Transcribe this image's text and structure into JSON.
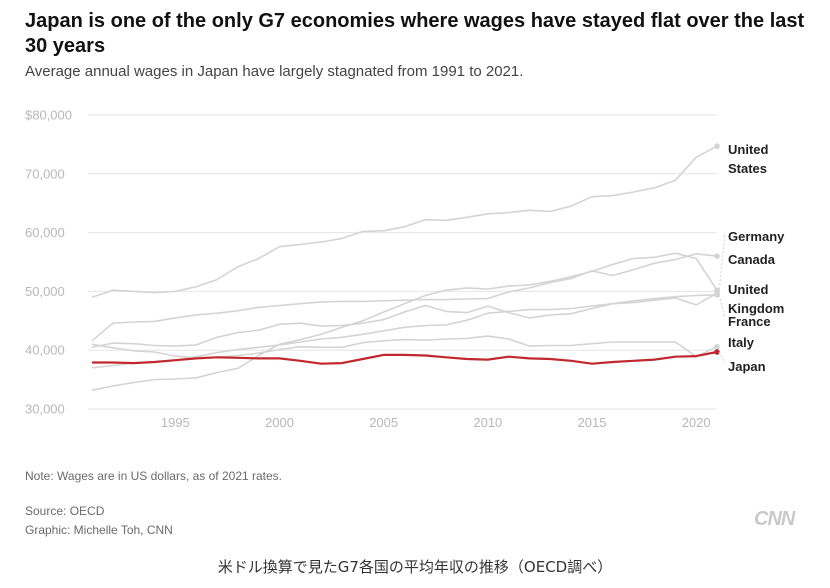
{
  "header": {
    "title": "Japan is one of the only G7 economies where wages have stayed flat over the last 30 years",
    "subtitle": "Average annual wages in Japan have largely stagnated from 1991 to 2021."
  },
  "footer": {
    "note": "Note: Wages are in US dollars, as of 2021 rates.",
    "source": "Source: OECD",
    "credit": "Graphic: Michelle Toh, CNN",
    "logo": "CNN",
    "caption": "米ドル換算で見たG7各国の平均年収の推移（OECD調べ）"
  },
  "colors": {
    "highlight": "#c0282d",
    "other": "#d4d4d4",
    "grid": "#e6e6e6"
  },
  "chart_data": {
    "type": "line",
    "title": "Japan is one of the only G7 economies where wages have stayed flat over the last 30 years",
    "subtitle": "Average annual wages in Japan have largely stagnated from 1991 to 2021.",
    "xlabel": "",
    "ylabel": "",
    "xlim": [
      1991,
      2021
    ],
    "ylim": [
      30000,
      80000
    ],
    "x_ticks": [
      1995,
      2000,
      2005,
      2010,
      2015,
      2020
    ],
    "y_ticks": [
      {
        "value": 30000,
        "label": "30,000"
      },
      {
        "value": 40000,
        "label": "40,000"
      },
      {
        "value": 50000,
        "label": "50,000"
      },
      {
        "value": 60000,
        "label": "60,000"
      },
      {
        "value": 70000,
        "label": "70,000"
      },
      {
        "value": 80000,
        "label": "$80,000"
      }
    ],
    "grid": true,
    "legend": "direct labels at right end of lines",
    "x": [
      1991,
      1992,
      1993,
      1994,
      1995,
      1996,
      1997,
      1998,
      1999,
      2000,
      2001,
      2002,
      2003,
      2004,
      2005,
      2006,
      2007,
      2008,
      2009,
      2010,
      2011,
      2012,
      2013,
      2014,
      2015,
      2016,
      2017,
      2018,
      2019,
      2020,
      2021
    ],
    "series": [
      {
        "name": "United States",
        "label_lines": [
          "United",
          "States"
        ],
        "highlight": false,
        "values": [
          49000,
          50200,
          50000,
          49800,
          50000,
          50800,
          52000,
          54200,
          55600,
          57600,
          58000,
          58400,
          59000,
          60200,
          60300,
          61000,
          62200,
          62100,
          62600,
          63200,
          63400,
          63800,
          63600,
          64500,
          66100,
          66300,
          66900,
          67600,
          68900,
          72800,
          74700
        ]
      },
      {
        "name": "Germany",
        "label_lines": [
          "Germany"
        ],
        "highlight": false,
        "values": [
          40500,
          41200,
          41100,
          40800,
          40700,
          40900,
          42200,
          43000,
          43400,
          44400,
          44600,
          44100,
          44200,
          44600,
          45200,
          46500,
          47600,
          46600,
          46400,
          47500,
          46400,
          45500,
          46000,
          46200,
          47100,
          47900,
          48100,
          48500,
          48900,
          47700,
          49700
        ]
      },
      {
        "name": "Canada",
        "label_lines": [
          "Canada"
        ],
        "highlight": false,
        "values": [
          41600,
          44600,
          44800,
          44900,
          45500,
          46000,
          46300,
          46700,
          47300,
          47600,
          47900,
          48200,
          48300,
          48300,
          48400,
          48500,
          48600,
          48600,
          48700,
          48800,
          49900,
          50600,
          51500,
          52200,
          53500,
          52700,
          53700,
          54800,
          55400,
          56400,
          56000
        ]
      },
      {
        "name": "United Kingdom",
        "label_lines": [
          "United",
          "Kingdom"
        ],
        "highlight": false,
        "values": [
          33200,
          33900,
          34500,
          35000,
          35100,
          35300,
          36200,
          36900,
          39100,
          41000,
          41800,
          42700,
          43900,
          45000,
          46500,
          47900,
          49300,
          50200,
          50600,
          50400,
          50900,
          51100,
          51700,
          52500,
          53400,
          54600,
          55600,
          55800,
          56500,
          55600,
          50200
        ]
      },
      {
        "name": "France",
        "label_lines": [
          "France"
        ],
        "highlight": false,
        "values": [
          37000,
          37400,
          37800,
          38000,
          38300,
          38900,
          39600,
          40100,
          40500,
          40900,
          41400,
          41900,
          42200,
          42700,
          43300,
          43900,
          44200,
          44300,
          45100,
          46300,
          46600,
          46900,
          46900,
          47100,
          47500,
          47900,
          48400,
          48800,
          49100,
          49300,
          49400
        ]
      },
      {
        "name": "Italy",
        "label_lines": [
          "Italy"
        ],
        "highlight": false,
        "values": [
          41000,
          40400,
          39900,
          39700,
          39000,
          38700,
          38800,
          39100,
          39500,
          40100,
          40600,
          40500,
          40500,
          41300,
          41600,
          41800,
          41700,
          41900,
          42000,
          42400,
          41900,
          40700,
          40800,
          40800,
          41100,
          41400,
          41400,
          41400,
          41400,
          38900,
          40600
        ]
      },
      {
        "name": "Japan",
        "label_lines": [
          "Japan"
        ],
        "highlight": true,
        "values": [
          37900,
          37900,
          37800,
          38000,
          38300,
          38600,
          38800,
          38700,
          38600,
          38600,
          38200,
          37700,
          37800,
          38500,
          39200,
          39200,
          39100,
          38800,
          38500,
          38400,
          38900,
          38600,
          38500,
          38200,
          37700,
          38000,
          38200,
          38400,
          38900,
          39000,
          39700
        ]
      }
    ]
  }
}
